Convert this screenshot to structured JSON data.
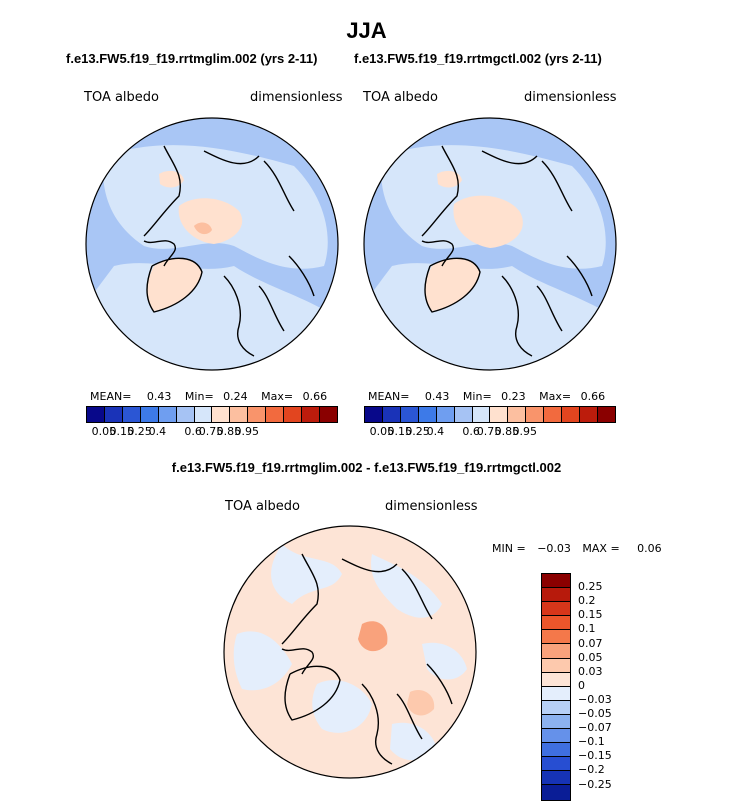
{
  "title": "JJA",
  "panels": [
    {
      "case": "f.e13.FW5.f19_f19.rrtmglim.002 (yrs 2-11)",
      "variable": "TOA albedo",
      "units": "dimensionless",
      "mean_label": "MEAN=",
      "mean": "0.43",
      "min_label": "Min=",
      "min": "0.24",
      "max_label": "Max=",
      "max": "0.66"
    },
    {
      "case": "f.e13.FW5.f19_f19.rrtmgctl.002 (yrs 2-11)",
      "variable": "TOA albedo",
      "units": "dimensionless",
      "mean_label": "MEAN=",
      "mean": "0.43",
      "min_label": "Min=",
      "min": "0.23",
      "max_label": "Max=",
      "max": "0.66"
    }
  ],
  "abs_colorbar": {
    "colors": [
      "#08088a",
      "#1a33b8",
      "#2b56d4",
      "#3d7ae8",
      "#6f9ef0",
      "#a6c3f4",
      "#d6e6fa",
      "#ffe1cf",
      "#fcbfa0",
      "#f9946b",
      "#f26a3e",
      "#e2451f",
      "#bc1c0c",
      "#8a0000"
    ],
    "labels": [
      "0.05",
      "0.15",
      "0.25",
      "0.4",
      "0.6",
      "0.75",
      "0.85",
      "0.95"
    ]
  },
  "diff_panel": {
    "case": "f.e13.FW5.f19_f19.rrtmglim.002 - f.e13.FW5.f19_f19.rrtmgctl.002",
    "variable": "TOA albedo",
    "units": "dimensionless",
    "min_label": "MIN =",
    "min": "−0.03",
    "max_label": "MAX =",
    "max": "0.06"
  },
  "diff_colorbar": {
    "colors": [
      "#8a0000",
      "#b71a0c",
      "#d7361a",
      "#ec562b",
      "#f4784a",
      "#f9a27c",
      "#fdc9ad",
      "#fde4d6",
      "#e4eefc",
      "#b7d0f6",
      "#8cb2ef",
      "#6591ea",
      "#3f6fe0",
      "#274ed2",
      "#1633b5",
      "#0a1d96"
    ],
    "labels": [
      "0.25",
      "0.2",
      "0.15",
      "0.1",
      "0.07",
      "0.05",
      "0.03",
      "0",
      "−0.03",
      "−0.05",
      "−0.07",
      "−0.1",
      "−0.15",
      "−0.2",
      "−0.25"
    ]
  }
}
